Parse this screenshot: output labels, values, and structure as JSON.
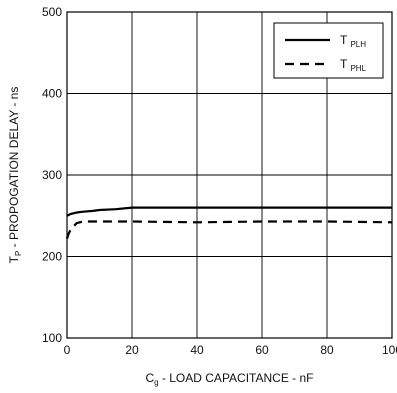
{
  "chart_data": {
    "type": "line",
    "xlabel": {
      "main": "C",
      "sub": "g",
      "rest": " - LOAD CAPACITANCE - nF"
    },
    "ylabel": {
      "main": "T",
      "sub": "P",
      "rest": " - PROPOGATION DELAY - ns"
    },
    "xlim": [
      0,
      100
    ],
    "ylim": [
      100,
      500
    ],
    "xticks": [
      0,
      20,
      40,
      60,
      80,
      100
    ],
    "yticks": [
      100,
      200,
      300,
      400,
      500
    ],
    "xtick_labels": [
      "0",
      "20",
      "40",
      "60",
      "80",
      "100"
    ],
    "ytick_labels": [
      "100",
      "200",
      "300",
      "400",
      "500"
    ],
    "grid": true,
    "legend_position": "top-right",
    "series": [
      {
        "name": {
          "main": "T",
          "sub": "PLH"
        },
        "style": "solid",
        "color": "#000000",
        "x": [
          0,
          1,
          2,
          3,
          5,
          8,
          10,
          15,
          20,
          30,
          40,
          60,
          80,
          100
        ],
        "y": [
          250,
          252,
          253,
          254,
          255,
          256,
          257,
          258,
          260,
          260,
          260,
          260,
          260,
          260
        ]
      },
      {
        "name": {
          "main": "T",
          "sub": "PHL"
        },
        "style": "dashed",
        "color": "#000000",
        "x": [
          0,
          0.5,
          1,
          2,
          3,
          5,
          10,
          20,
          40,
          60,
          80,
          100
        ],
        "y": [
          222,
          228,
          232,
          237,
          241,
          243,
          243,
          243,
          242,
          243,
          243,
          242
        ]
      }
    ]
  }
}
